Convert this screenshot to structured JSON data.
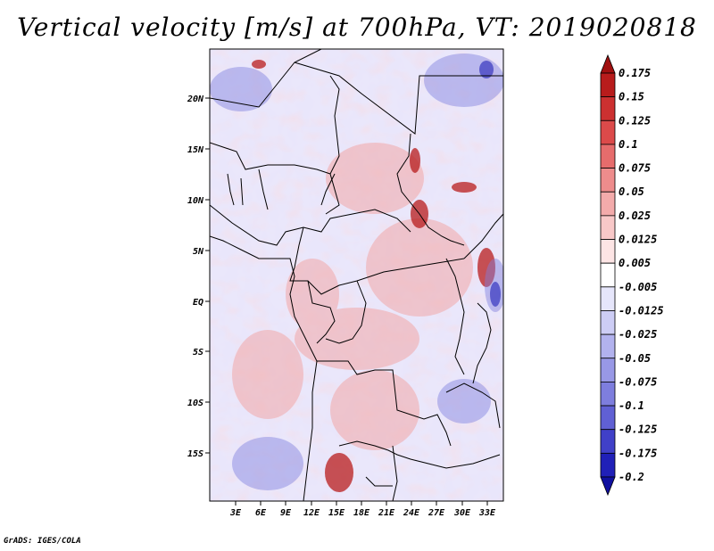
{
  "title": "Vertical velocity [m/s] at 700hPa, VT: 2019020818",
  "credit": "GrADS: IGES/COLA",
  "lat_labels": [
    "20N",
    "15N",
    "10N",
    "5N",
    "EQ",
    "5S",
    "10S",
    "15S"
  ],
  "lon_labels": [
    "3E",
    "6E",
    "9E",
    "12E",
    "15E",
    "18E",
    "21E",
    "24E",
    "27E",
    "30E",
    "33E"
  ],
  "colorbar": {
    "levels": [
      "0.175",
      "0.15",
      "0.125",
      "0.1",
      "0.075",
      "0.05",
      "0.025",
      "0.0125",
      "0.005",
      "-0.005",
      "-0.0125",
      "-0.025",
      "-0.05",
      "-0.075",
      "-0.1",
      "-0.125",
      "-0.175",
      "-0.2"
    ],
    "colors": [
      "#a01010",
      "#b81c1c",
      "#cc3030",
      "#dc4a4a",
      "#e66c6c",
      "#ee8c8c",
      "#f3abab",
      "#f8c8c8",
      "#fde5e5",
      "#ffffff",
      "#e6e6fb",
      "#cdcdf5",
      "#b2b2ee",
      "#9898e6",
      "#7e7ede",
      "#6060d4",
      "#4040c8",
      "#2020b8",
      "#1010a0"
    ]
  }
}
